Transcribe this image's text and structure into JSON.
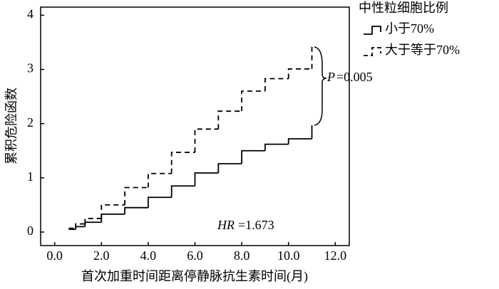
{
  "chart_data": {
    "type": "line",
    "step": "post",
    "xlabel": "首次加重时间距离停静脉抗生素时间(月)",
    "ylabel": "累积危险函数",
    "legend_title": "中性粒细胞比例",
    "legend_position": "outside-top-right",
    "x": [
      0.6,
      0.9,
      1.3,
      2,
      3,
      4,
      5,
      6,
      7,
      8,
      9,
      10,
      11
    ],
    "series": [
      {
        "name": "小于70%",
        "color": "#000000",
        "dash": "solid",
        "values": [
          0.05,
          0.1,
          0.18,
          0.33,
          0.45,
          0.64,
          0.85,
          1.09,
          1.26,
          1.5,
          1.62,
          1.72,
          1.97
        ]
      },
      {
        "name": "大于等于70%",
        "color": "#000000",
        "dash": "dashed",
        "values": [
          0.07,
          0.15,
          0.25,
          0.5,
          0.82,
          1.08,
          1.47,
          1.9,
          2.23,
          2.6,
          2.83,
          3.01,
          3.45
        ]
      }
    ],
    "xlim": [
      -0.6,
      12.6
    ],
    "ylim": [
      -0.25,
      4.15
    ],
    "xticks": [
      {
        "value": 0,
        "label": "0.0"
      },
      {
        "value": 2,
        "label": "2.0"
      },
      {
        "value": 4,
        "label": "4.0"
      },
      {
        "value": 6,
        "label": "6.0"
      },
      {
        "value": 8,
        "label": "8.0"
      },
      {
        "value": 10,
        "label": "10.0"
      },
      {
        "value": 12,
        "label": "12.0"
      }
    ],
    "yticks": [
      0,
      1,
      2,
      3,
      4
    ],
    "annotations": {
      "p_symbol": "P",
      "p_value": "=0.005",
      "hr_symbol": "HR",
      "hr_value": "=1.673"
    }
  }
}
